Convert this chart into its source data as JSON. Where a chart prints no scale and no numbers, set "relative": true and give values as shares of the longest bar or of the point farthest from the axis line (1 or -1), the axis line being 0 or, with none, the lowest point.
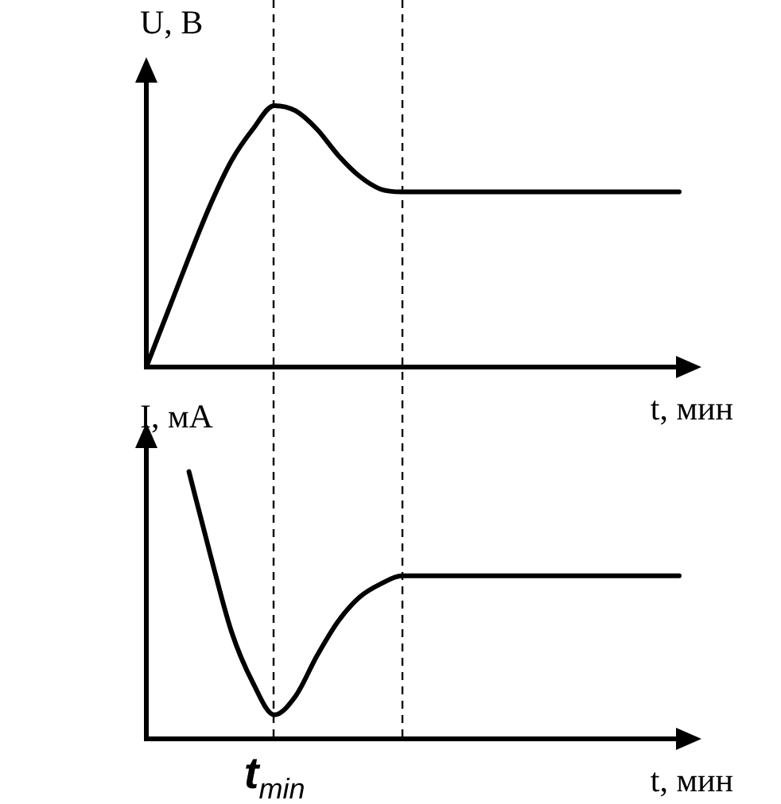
{
  "chart_data": [
    {
      "type": "line",
      "ylabel": "U, В",
      "xlabel": "t, мин",
      "relative": true,
      "tick_labels": false,
      "grid": false,
      "legend": false,
      "marker": "none",
      "line_style": "solid",
      "categories": [
        null,
        null,
        null,
        null,
        null,
        null,
        null,
        null,
        null,
        null,
        null,
        null,
        null,
        null,
        null,
        null,
        null,
        null,
        null,
        null,
        null,
        null,
        null,
        null,
        null,
        null
      ],
      "series": [
        {
          "color": "#000000",
          "values": [
            0,
            0.21,
            0.42,
            0.62,
            0.79,
            0.91,
            1,
            0.98,
            0.91,
            0.81,
            0.73,
            0.68,
            0.67,
            0.67,
            0.67,
            0.67,
            0.67,
            0.67,
            0.67,
            0.67,
            0.67,
            0.67,
            0.67,
            0.67,
            0.67,
            0.67
          ]
        }
      ]
    },
    {
      "type": "line",
      "ylabel": "I, мА",
      "xlabel": "t, мин",
      "relative": true,
      "tick_labels": false,
      "grid": false,
      "legend": false,
      "marker": "none",
      "line_style": "solid",
      "categories": [
        null,
        null,
        null,
        null,
        null,
        null,
        null,
        null,
        null,
        null,
        null,
        null,
        null,
        null,
        null,
        null,
        null,
        null,
        null,
        null,
        null,
        null,
        null,
        null,
        null,
        null
      ],
      "series": [
        {
          "color": "#000000",
          "values": [
            null,
            null,
            1,
            0.69,
            0.4,
            0.21,
            0.09,
            0.16,
            0.31,
            0.44,
            0.53,
            0.58,
            0.61,
            0.61,
            0.61,
            0.61,
            0.61,
            0.61,
            0.61,
            0.61,
            0.61,
            0.61,
            0.61,
            0.61,
            0.61,
            0.61
          ]
        }
      ],
      "annotations": [
        "t$_{min}$"
      ]
    }
  ]
}
